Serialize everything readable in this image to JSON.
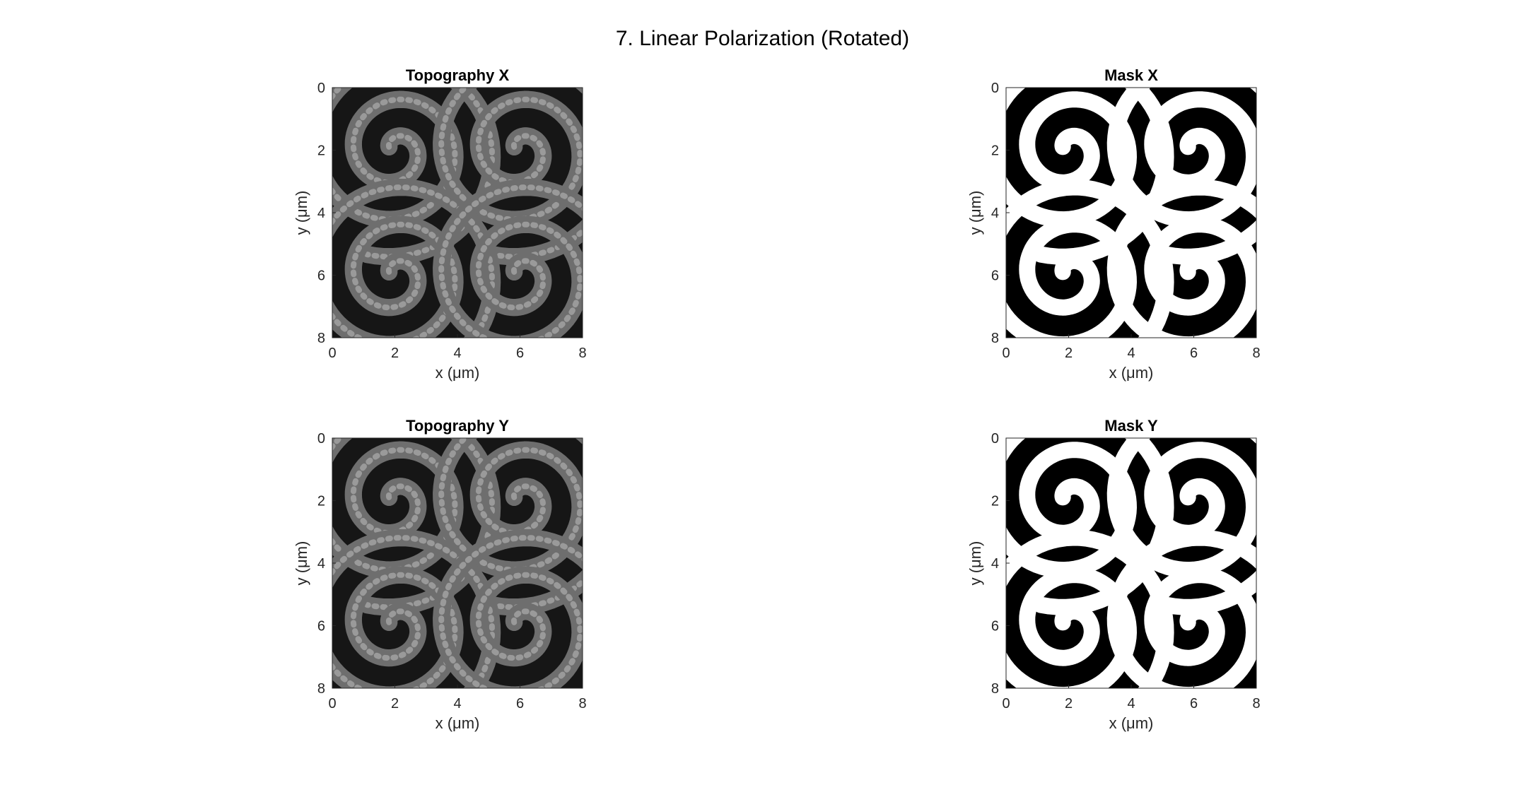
{
  "figure": {
    "title": "7. Linear Polarization (Rotated)"
  },
  "chart_data": [
    {
      "type": "heatmap",
      "title": "Topography X",
      "xlabel": "x (μm)",
      "ylabel": "y (μm)",
      "xlim": [
        0,
        8
      ],
      "ylim": [
        0,
        8
      ],
      "y_axis_direction": "reversed",
      "xticks": [
        0,
        2,
        4,
        6,
        8
      ],
      "yticks": [
        0,
        2,
        4,
        6,
        8
      ],
      "colormap": "gray",
      "content": "four spiral structures",
      "spiral_centers": [
        [
          2,
          2
        ],
        [
          6,
          2
        ],
        [
          2,
          6
        ],
        [
          6,
          6
        ]
      ]
    },
    {
      "type": "heatmap",
      "title": "Mask X",
      "xlabel": "x (μm)",
      "ylabel": "y (μm)",
      "xlim": [
        0,
        8
      ],
      "ylim": [
        0,
        8
      ],
      "y_axis_direction": "reversed",
      "xticks": [
        0,
        2,
        4,
        6,
        8
      ],
      "yticks": [
        0,
        2,
        4,
        6,
        8
      ],
      "colormap": "binary",
      "content": "four spiral masks",
      "spiral_centers": [
        [
          2,
          2
        ],
        [
          6,
          2
        ],
        [
          2,
          6
        ],
        [
          6,
          6
        ]
      ]
    },
    {
      "type": "heatmap",
      "title": "Topography Y",
      "xlabel": "x (μm)",
      "ylabel": "y (μm)",
      "xlim": [
        0,
        8
      ],
      "ylim": [
        0,
        8
      ],
      "y_axis_direction": "reversed",
      "xticks": [
        0,
        2,
        4,
        6,
        8
      ],
      "yticks": [
        0,
        2,
        4,
        6,
        8
      ],
      "colormap": "gray",
      "content": "four spiral structures",
      "spiral_centers": [
        [
          2,
          2
        ],
        [
          6,
          2
        ],
        [
          2,
          6
        ],
        [
          6,
          6
        ]
      ]
    },
    {
      "type": "heatmap",
      "title": "Mask Y",
      "xlabel": "x (μm)",
      "ylabel": "y (μm)",
      "xlim": [
        0,
        8
      ],
      "ylim": [
        0,
        8
      ],
      "y_axis_direction": "reversed",
      "xticks": [
        0,
        2,
        4,
        6,
        8
      ],
      "yticks": [
        0,
        2,
        4,
        6,
        8
      ],
      "colormap": "binary",
      "content": "four spiral masks",
      "spiral_centers": [
        [
          2,
          2
        ],
        [
          6,
          2
        ],
        [
          2,
          6
        ],
        [
          6,
          6
        ]
      ]
    }
  ]
}
